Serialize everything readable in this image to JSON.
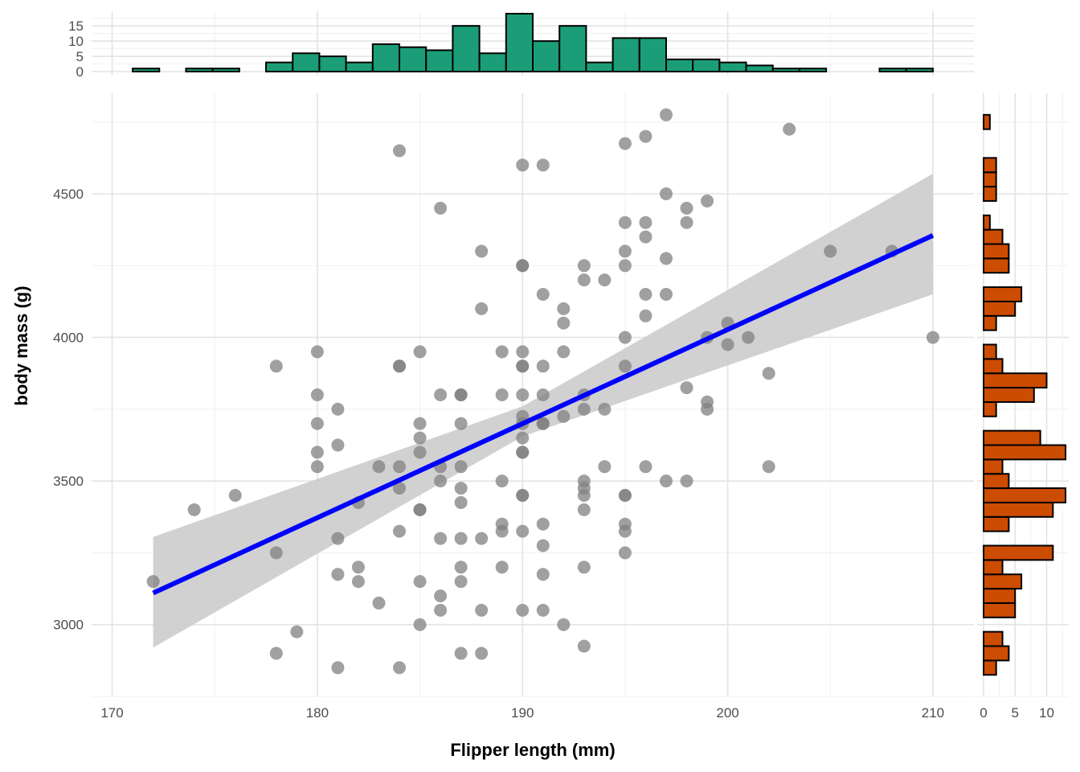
{
  "chart_data": [
    {
      "type": "scatter",
      "title": "",
      "xlabel": "Flipper length (mm)",
      "ylabel": "body mass (g)",
      "xlim": [
        169,
        212
      ],
      "ylim": [
        2750,
        4850
      ],
      "x_ticks": [
        170,
        180,
        190,
        200,
        210
      ],
      "y_ticks": [
        3000,
        3500,
        4000,
        4500
      ],
      "grid": true,
      "colors": {
        "points": "#808080",
        "fit_line": "#0000ff",
        "band": "#cccccc"
      },
      "points": [
        [
          172,
          3150
        ],
        [
          174,
          3400
        ],
        [
          176,
          3450
        ],
        [
          178,
          3900
        ],
        [
          178,
          3250
        ],
        [
          178,
          2900
        ],
        [
          179,
          2975
        ],
        [
          180,
          3950
        ],
        [
          180,
          3800
        ],
        [
          180,
          3700
        ],
        [
          180,
          3600
        ],
        [
          180,
          3550
        ],
        [
          181,
          3750
        ],
        [
          181,
          3625
        ],
        [
          181,
          3300
        ],
        [
          181,
          3175
        ],
        [
          181,
          2850
        ],
        [
          182,
          3425
        ],
        [
          182,
          3200
        ],
        [
          182,
          3150
        ],
        [
          183,
          3550
        ],
        [
          183,
          3075
        ],
        [
          184,
          4650
        ],
        [
          184,
          3900
        ],
        [
          184,
          3900
        ],
        [
          184,
          3550
        ],
        [
          184,
          3475
        ],
        [
          184,
          3325
        ],
        [
          184,
          2850
        ],
        [
          185,
          3950
        ],
        [
          185,
          3700
        ],
        [
          185,
          3650
        ],
        [
          185,
          3600
        ],
        [
          185,
          3400
        ],
        [
          185,
          3400
        ],
        [
          185,
          3150
        ],
        [
          185,
          3000
        ],
        [
          186,
          4450
        ],
        [
          186,
          3800
        ],
        [
          186,
          3550
        ],
        [
          186,
          3500
        ],
        [
          186,
          3300
        ],
        [
          186,
          3100
        ],
        [
          186,
          3050
        ],
        [
          187,
          3800
        ],
        [
          187,
          3800
        ],
        [
          187,
          3700
        ],
        [
          187,
          3550
        ],
        [
          187,
          3475
        ],
        [
          187,
          3425
        ],
        [
          187,
          3300
        ],
        [
          187,
          3200
        ],
        [
          187,
          3150
        ],
        [
          187,
          2900
        ],
        [
          188,
          4300
        ],
        [
          188,
          4100
        ],
        [
          188,
          3300
        ],
        [
          188,
          3050
        ],
        [
          188,
          2900
        ],
        [
          189,
          3950
        ],
        [
          189,
          3800
        ],
        [
          189,
          3500
        ],
        [
          189,
          3350
        ],
        [
          189,
          3325
        ],
        [
          189,
          3200
        ],
        [
          190,
          4600
        ],
        [
          190,
          4250
        ],
        [
          190,
          4250
        ],
        [
          190,
          3950
        ],
        [
          190,
          3900
        ],
        [
          190,
          3900
        ],
        [
          190,
          3800
        ],
        [
          190,
          3725
        ],
        [
          190,
          3700
        ],
        [
          190,
          3650
        ],
        [
          190,
          3600
        ],
        [
          190,
          3600
        ],
        [
          190,
          3450
        ],
        [
          190,
          3450
        ],
        [
          190,
          3325
        ],
        [
          190,
          3050
        ],
        [
          191,
          4600
        ],
        [
          191,
          4150
        ],
        [
          191,
          3900
        ],
        [
          191,
          3800
        ],
        [
          191,
          3700
        ],
        [
          191,
          3700
        ],
        [
          191,
          3350
        ],
        [
          191,
          3275
        ],
        [
          191,
          3175
        ],
        [
          191,
          3050
        ],
        [
          192,
          4100
        ],
        [
          192,
          4050
        ],
        [
          192,
          3950
        ],
        [
          192,
          3725
        ],
        [
          192,
          3000
        ],
        [
          193,
          4250
        ],
        [
          193,
          4200
        ],
        [
          193,
          3800
        ],
        [
          193,
          3750
        ],
        [
          193,
          3500
        ],
        [
          193,
          3475
        ],
        [
          193,
          3450
        ],
        [
          193,
          3400
        ],
        [
          193,
          3200
        ],
        [
          193,
          2925
        ],
        [
          194,
          4200
        ],
        [
          194,
          3750
        ],
        [
          194,
          3550
        ],
        [
          195,
          4675
        ],
        [
          195,
          4400
        ],
        [
          195,
          4300
        ],
        [
          195,
          4250
        ],
        [
          195,
          4000
        ],
        [
          195,
          3900
        ],
        [
          195,
          3450
        ],
        [
          195,
          3450
        ],
        [
          195,
          3350
        ],
        [
          195,
          3325
        ],
        [
          195,
          3250
        ],
        [
          196,
          4700
        ],
        [
          196,
          4400
        ],
        [
          196,
          4350
        ],
        [
          196,
          4150
        ],
        [
          196,
          4075
        ],
        [
          196,
          3550
        ],
        [
          197,
          4775
        ],
        [
          197,
          4500
        ],
        [
          197,
          4275
        ],
        [
          197,
          4150
        ],
        [
          197,
          3500
        ],
        [
          198,
          4450
        ],
        [
          198,
          4400
        ],
        [
          198,
          3825
        ],
        [
          198,
          3500
        ],
        [
          199,
          4475
        ],
        [
          199,
          4000
        ],
        [
          199,
          3775
        ],
        [
          199,
          3750
        ],
        [
          200,
          4050
        ],
        [
          200,
          3975
        ],
        [
          201,
          4000
        ],
        [
          202,
          3875
        ],
        [
          202,
          3550
        ],
        [
          203,
          4725
        ],
        [
          205,
          4300
        ],
        [
          208,
          4300
        ],
        [
          210,
          4000
        ]
      ],
      "fit_line": {
        "x": [
          172,
          210
        ],
        "y": [
          3110,
          4355
        ]
      },
      "confidence_band": {
        "x": [
          172,
          190,
          210
        ],
        "lower": [
          2920,
          3655,
          4150
        ],
        "upper": [
          3305,
          3760,
          4570
        ]
      }
    },
    {
      "type": "bar",
      "title": "",
      "xlabel": "",
      "ylabel": "",
      "y_ticks": [
        0,
        5,
        10,
        15
      ],
      "ylim": [
        0,
        19
      ],
      "colors": {
        "fill": "#1b9e77",
        "outline": "#000000"
      },
      "bin_width": 1.3,
      "bin_starts": [
        171.0,
        172.3,
        173.6,
        174.9,
        176.2,
        177.5,
        178.8,
        180.1,
        181.4,
        182.7,
        184.0,
        185.3,
        186.6,
        187.9,
        189.2,
        190.5,
        191.8,
        193.1,
        194.4,
        195.7,
        197.0,
        198.3,
        199.6,
        200.9,
        202.2,
        203.5,
        204.8,
        206.1,
        207.4,
        208.7
      ],
      "values": [
        1,
        0,
        1,
        1,
        0,
        3,
        6,
        5,
        3,
        9,
        8,
        7,
        15,
        6,
        19,
        10,
        15,
        3,
        11,
        11,
        4,
        4,
        3,
        2,
        1,
        1,
        0,
        0,
        1,
        1
      ]
    },
    {
      "type": "bar",
      "orientation": "horizontal",
      "title": "",
      "xlabel": "",
      "ylabel": "",
      "x_ticks": [
        0,
        5,
        10
      ],
      "xlim": [
        0,
        13
      ],
      "colors": {
        "fill": "#cc4c02",
        "outline": "#000000"
      },
      "bin_width": 50,
      "bin_starts": [
        2825,
        2875,
        2925,
        2975,
        3025,
        3075,
        3125,
        3175,
        3225,
        3275,
        3325,
        3375,
        3425,
        3475,
        3525,
        3575,
        3625,
        3675,
        3725,
        3775,
        3825,
        3875,
        3925,
        3975,
        4025,
        4075,
        4125,
        4175,
        4225,
        4275,
        4325,
        4375,
        4425,
        4475,
        4525,
        4575,
        4625,
        4675,
        4725
      ],
      "values": [
        2,
        4,
        3,
        0,
        5,
        5,
        6,
        3,
        11,
        0,
        4,
        11,
        13,
        4,
        3,
        13,
        9,
        0,
        2,
        8,
        10,
        3,
        2,
        0,
        2,
        5,
        6,
        0,
        4,
        4,
        3,
        1,
        0,
        2,
        2,
        2,
        0,
        0,
        1
      ]
    }
  ]
}
